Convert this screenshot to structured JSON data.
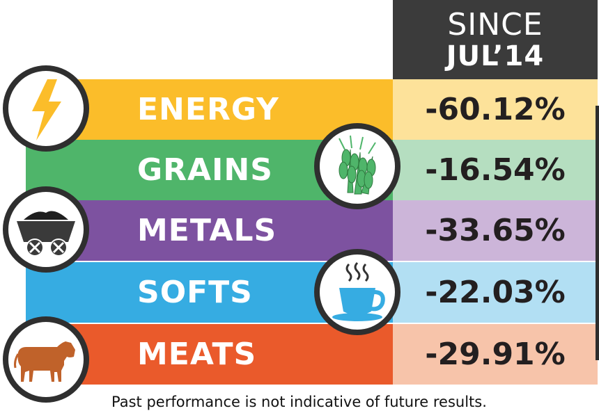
{
  "header": {
    "line1": "SINCE",
    "line2": "JUL’14"
  },
  "footnote": "Past performance is not indicative of future results.",
  "colors": {
    "header_bg": "#3b3b3b",
    "energy": "#fbbd2a",
    "grains": "#4fb56a",
    "metals": "#7d52a0",
    "softs": "#36ace2",
    "meats": "#ea5a2b",
    "text_dark": "#231f20"
  },
  "chart_data": {
    "type": "table",
    "columns": [
      "",
      "SINCE JUL’14"
    ],
    "rows": [
      {
        "category": "ENERGY",
        "value": "-60.12%",
        "numeric": -60.12,
        "icon": "lightning-bolt-icon"
      },
      {
        "category": "GRAINS",
        "value": "-16.54%",
        "numeric": -16.54,
        "icon": "wheat-icon"
      },
      {
        "category": "METALS",
        "value": "-33.65%",
        "numeric": -33.65,
        "icon": "mine-cart-icon"
      },
      {
        "category": "SOFTS",
        "value": "-22.03%",
        "numeric": -22.03,
        "icon": "coffee-cup-icon"
      },
      {
        "category": "MEATS",
        "value": "-29.91%",
        "numeric": -29.91,
        "icon": "cow-icon"
      }
    ]
  }
}
